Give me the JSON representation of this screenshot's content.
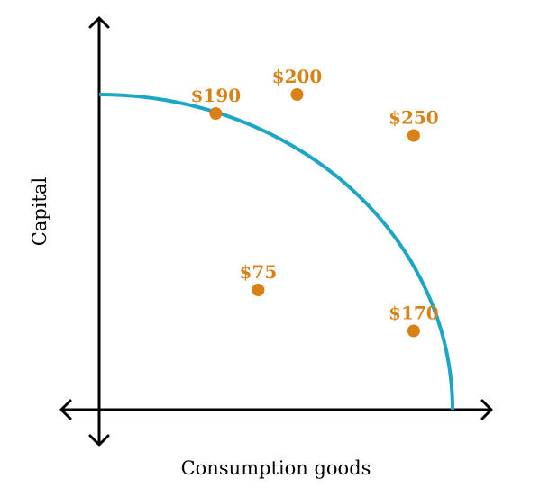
{
  "chart_data": {
    "type": "scatter",
    "title": "",
    "xlabel": "Consumption goods",
    "ylabel": "Capital",
    "xlim": [
      0,
      10
    ],
    "ylim": [
      0,
      10
    ],
    "grid": false,
    "curve": {
      "kind": "production-possibilities-frontier",
      "x_intercept": 10,
      "y_intercept": 10,
      "color": "#1aa6c4"
    },
    "points": [
      {
        "label": "$190",
        "x": 3.3,
        "y": 9.4
      },
      {
        "label": "$200",
        "x": 5.6,
        "y": 10.0
      },
      {
        "label": "$250",
        "x": 8.9,
        "y": 8.7
      },
      {
        "label": "$75",
        "x": 4.5,
        "y": 3.8
      },
      {
        "label": "$170",
        "x": 8.9,
        "y": 2.5
      }
    ],
    "point_color": "#d98116"
  }
}
